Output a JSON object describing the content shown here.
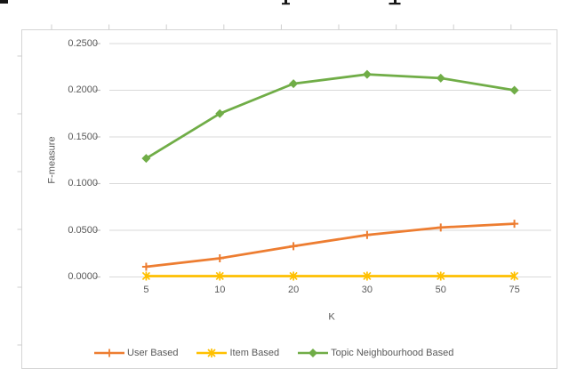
{
  "figure": {
    "background": "#ffffff",
    "frame_border_color": "#d4d4d4",
    "axis_text_color": "#595959",
    "gridline_color": "#d9d9d9",
    "tick_color": "#bfbfbf"
  },
  "chart_data": {
    "type": "line",
    "title": "",
    "xlabel": "K",
    "ylabel": "F-measure",
    "categories": [
      "5",
      "10",
      "20",
      "30",
      "50",
      "75"
    ],
    "y_tick_labels": [
      "0.0000",
      "0.0500",
      "0.1000",
      "0.1500",
      "0.2000",
      "0.2500"
    ],
    "ylim": [
      0,
      0.25
    ],
    "y_tick_step": 0.05,
    "grid": true,
    "legend_position": "bottom",
    "series": [
      {
        "name": "User Based",
        "color": "#ED7D31",
        "marker": "plus",
        "values": [
          0.011,
          0.02,
          0.033,
          0.045,
          0.053,
          0.057
        ]
      },
      {
        "name": "Item Based",
        "color": "#FFC000",
        "marker": "asterisk",
        "values": [
          0.001,
          0.001,
          0.001,
          0.001,
          0.001,
          0.001
        ]
      },
      {
        "name": "Topic Neighbourhood Based",
        "color": "#70AD47",
        "marker": "diamond",
        "values": [
          0.127,
          0.175,
          0.207,
          0.217,
          0.213,
          0.2
        ]
      }
    ]
  }
}
